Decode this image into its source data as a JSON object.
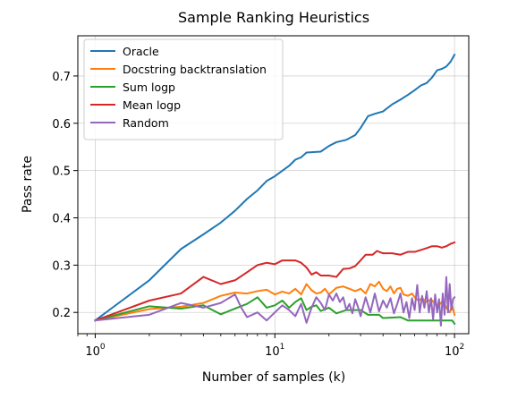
{
  "chart_data": {
    "type": "line",
    "title": "Sample Ranking Heuristics",
    "xlabel": "Number of samples (k)",
    "ylabel": "Pass rate",
    "x_scale": "log",
    "xlim": [
      0.8,
      120
    ],
    "ylim": [
      0.155,
      0.785
    ],
    "x_ticks": [
      {
        "value": 1,
        "label_base": "10",
        "label_exp": "0"
      },
      {
        "value": 10,
        "label_base": "10",
        "label_exp": "1"
      },
      {
        "value": 100,
        "label_base": "10",
        "label_exp": "2"
      }
    ],
    "y_ticks": [
      {
        "value": 0.2,
        "label": "0.2"
      },
      {
        "value": 0.3,
        "label": "0.3"
      },
      {
        "value": 0.4,
        "label": "0.4"
      },
      {
        "value": 0.5,
        "label": "0.5"
      },
      {
        "value": 0.6,
        "label": "0.6"
      },
      {
        "value": 0.7,
        "label": "0.7"
      }
    ],
    "grid": true,
    "legend_position": "top-left",
    "series": [
      {
        "name": "Oracle",
        "color": "#1f77b4",
        "points": [
          [
            1,
            0.183
          ],
          [
            2,
            0.268
          ],
          [
            3,
            0.334
          ],
          [
            4,
            0.365
          ],
          [
            5,
            0.39
          ],
          [
            6,
            0.415
          ],
          [
            7,
            0.44
          ],
          [
            8,
            0.458
          ],
          [
            9,
            0.478
          ],
          [
            10,
            0.488
          ],
          [
            12,
            0.51
          ],
          [
            13,
            0.523
          ],
          [
            14,
            0.528
          ],
          [
            15,
            0.538
          ],
          [
            18,
            0.54
          ],
          [
            20,
            0.552
          ],
          [
            22,
            0.56
          ],
          [
            25,
            0.565
          ],
          [
            28,
            0.575
          ],
          [
            30,
            0.59
          ],
          [
            33,
            0.615
          ],
          [
            36,
            0.62
          ],
          [
            40,
            0.625
          ],
          [
            45,
            0.64
          ],
          [
            50,
            0.65
          ],
          [
            55,
            0.66
          ],
          [
            60,
            0.67
          ],
          [
            65,
            0.68
          ],
          [
            70,
            0.685
          ],
          [
            75,
            0.697
          ],
          [
            80,
            0.712
          ],
          [
            85,
            0.715
          ],
          [
            90,
            0.72
          ],
          [
            95,
            0.73
          ],
          [
            100,
            0.745
          ]
        ]
      },
      {
        "name": "Docstring backtranslation",
        "color": "#ff7f0e",
        "points": [
          [
            1,
            0.183
          ],
          [
            2,
            0.207
          ],
          [
            3,
            0.212
          ],
          [
            4,
            0.22
          ],
          [
            5,
            0.235
          ],
          [
            6,
            0.242
          ],
          [
            7,
            0.24
          ],
          [
            8,
            0.245
          ],
          [
            9,
            0.248
          ],
          [
            10,
            0.238
          ],
          [
            11,
            0.244
          ],
          [
            12,
            0.24
          ],
          [
            13,
            0.25
          ],
          [
            14,
            0.238
          ],
          [
            15,
            0.26
          ],
          [
            16,
            0.247
          ],
          [
            17,
            0.24
          ],
          [
            18,
            0.242
          ],
          [
            19,
            0.25
          ],
          [
            20,
            0.238
          ],
          [
            22,
            0.252
          ],
          [
            24,
            0.255
          ],
          [
            26,
            0.25
          ],
          [
            28,
            0.245
          ],
          [
            30,
            0.25
          ],
          [
            32,
            0.24
          ],
          [
            34,
            0.26
          ],
          [
            36,
            0.255
          ],
          [
            38,
            0.265
          ],
          [
            40,
            0.25
          ],
          [
            42,
            0.245
          ],
          [
            44,
            0.255
          ],
          [
            46,
            0.24
          ],
          [
            48,
            0.25
          ],
          [
            50,
            0.252
          ],
          [
            52,
            0.238
          ],
          [
            55,
            0.235
          ],
          [
            58,
            0.24
          ],
          [
            60,
            0.232
          ],
          [
            63,
            0.225
          ],
          [
            66,
            0.23
          ],
          [
            70,
            0.222
          ],
          [
            74,
            0.228
          ],
          [
            78,
            0.218
          ],
          [
            82,
            0.215
          ],
          [
            86,
            0.225
          ],
          [
            90,
            0.21
          ],
          [
            94,
            0.2
          ],
          [
            97,
            0.215
          ],
          [
            100,
            0.195
          ]
        ]
      },
      {
        "name": "Sum logp",
        "color": "#2ca02c",
        "points": [
          [
            1,
            0.183
          ],
          [
            2,
            0.213
          ],
          [
            3,
            0.208
          ],
          [
            4,
            0.215
          ],
          [
            5,
            0.196
          ],
          [
            6,
            0.208
          ],
          [
            7,
            0.218
          ],
          [
            8,
            0.232
          ],
          [
            9,
            0.21
          ],
          [
            10,
            0.215
          ],
          [
            11,
            0.225
          ],
          [
            12,
            0.21
          ],
          [
            13,
            0.222
          ],
          [
            14,
            0.23
          ],
          [
            15,
            0.205
          ],
          [
            16,
            0.212
          ],
          [
            17,
            0.215
          ],
          [
            18,
            0.203
          ],
          [
            20,
            0.21
          ],
          [
            22,
            0.198
          ],
          [
            25,
            0.205
          ],
          [
            30,
            0.205
          ],
          [
            33,
            0.195
          ],
          [
            38,
            0.195
          ],
          [
            40,
            0.188
          ],
          [
            50,
            0.19
          ],
          [
            55,
            0.183
          ],
          [
            80,
            0.183
          ],
          [
            97,
            0.183
          ],
          [
            100,
            0.176
          ]
        ]
      },
      {
        "name": "Mean logp",
        "color": "#d62728",
        "points": [
          [
            1,
            0.183
          ],
          [
            2,
            0.225
          ],
          [
            3,
            0.24
          ],
          [
            4,
            0.275
          ],
          [
            5,
            0.26
          ],
          [
            6,
            0.268
          ],
          [
            7,
            0.285
          ],
          [
            8,
            0.3
          ],
          [
            9,
            0.305
          ],
          [
            10,
            0.302
          ],
          [
            11,
            0.31
          ],
          [
            12,
            0.31
          ],
          [
            13,
            0.31
          ],
          [
            14,
            0.305
          ],
          [
            15,
            0.295
          ],
          [
            16,
            0.28
          ],
          [
            17,
            0.285
          ],
          [
            18,
            0.278
          ],
          [
            20,
            0.278
          ],
          [
            22,
            0.275
          ],
          [
            24,
            0.292
          ],
          [
            26,
            0.293
          ],
          [
            28,
            0.298
          ],
          [
            30,
            0.31
          ],
          [
            32,
            0.322
          ],
          [
            35,
            0.322
          ],
          [
            37,
            0.33
          ],
          [
            40,
            0.325
          ],
          [
            45,
            0.325
          ],
          [
            50,
            0.322
          ],
          [
            55,
            0.328
          ],
          [
            60,
            0.328
          ],
          [
            65,
            0.332
          ],
          [
            70,
            0.336
          ],
          [
            75,
            0.34
          ],
          [
            80,
            0.34
          ],
          [
            85,
            0.337
          ],
          [
            90,
            0.34
          ],
          [
            95,
            0.345
          ],
          [
            100,
            0.348
          ]
        ]
      },
      {
        "name": "Random",
        "color": "#9467bd",
        "points": [
          [
            1,
            0.183
          ],
          [
            2,
            0.195
          ],
          [
            3,
            0.22
          ],
          [
            4,
            0.21
          ],
          [
            5,
            0.22
          ],
          [
            6,
            0.238
          ],
          [
            6.5,
            0.21
          ],
          [
            7,
            0.19
          ],
          [
            8,
            0.2
          ],
          [
            9,
            0.183
          ],
          [
            10,
            0.2
          ],
          [
            11,
            0.215
          ],
          [
            12,
            0.205
          ],
          [
            13,
            0.192
          ],
          [
            14,
            0.218
          ],
          [
            15,
            0.178
          ],
          [
            16,
            0.21
          ],
          [
            17,
            0.232
          ],
          [
            18,
            0.22
          ],
          [
            19,
            0.205
          ],
          [
            20,
            0.238
          ],
          [
            21,
            0.225
          ],
          [
            22,
            0.24
          ],
          [
            23,
            0.222
          ],
          [
            24,
            0.232
          ],
          [
            25,
            0.205
          ],
          [
            26,
            0.218
          ],
          [
            27,
            0.198
          ],
          [
            28,
            0.228
          ],
          [
            29,
            0.212
          ],
          [
            30,
            0.192
          ],
          [
            32,
            0.232
          ],
          [
            34,
            0.2
          ],
          [
            36,
            0.24
          ],
          [
            38,
            0.202
          ],
          [
            40,
            0.225
          ],
          [
            42,
            0.21
          ],
          [
            44,
            0.23
          ],
          [
            46,
            0.198
          ],
          [
            48,
            0.218
          ],
          [
            50,
            0.24
          ],
          [
            52,
            0.2
          ],
          [
            54,
            0.222
          ],
          [
            56,
            0.188
          ],
          [
            58,
            0.23
          ],
          [
            60,
            0.205
          ],
          [
            62,
            0.258
          ],
          [
            64,
            0.2
          ],
          [
            66,
            0.235
          ],
          [
            68,
            0.21
          ],
          [
            70,
            0.245
          ],
          [
            72,
            0.2
          ],
          [
            74,
            0.23
          ],
          [
            76,
            0.185
          ],
          [
            78,
            0.238
          ],
          [
            80,
            0.2
          ],
          [
            82,
            0.228
          ],
          [
            84,
            0.172
          ],
          [
            86,
            0.24
          ],
          [
            88,
            0.195
          ],
          [
            90,
            0.275
          ],
          [
            92,
            0.2
          ],
          [
            94,
            0.26
          ],
          [
            96,
            0.205
          ],
          [
            98,
            0.228
          ],
          [
            100,
            0.232
          ]
        ]
      }
    ]
  }
}
